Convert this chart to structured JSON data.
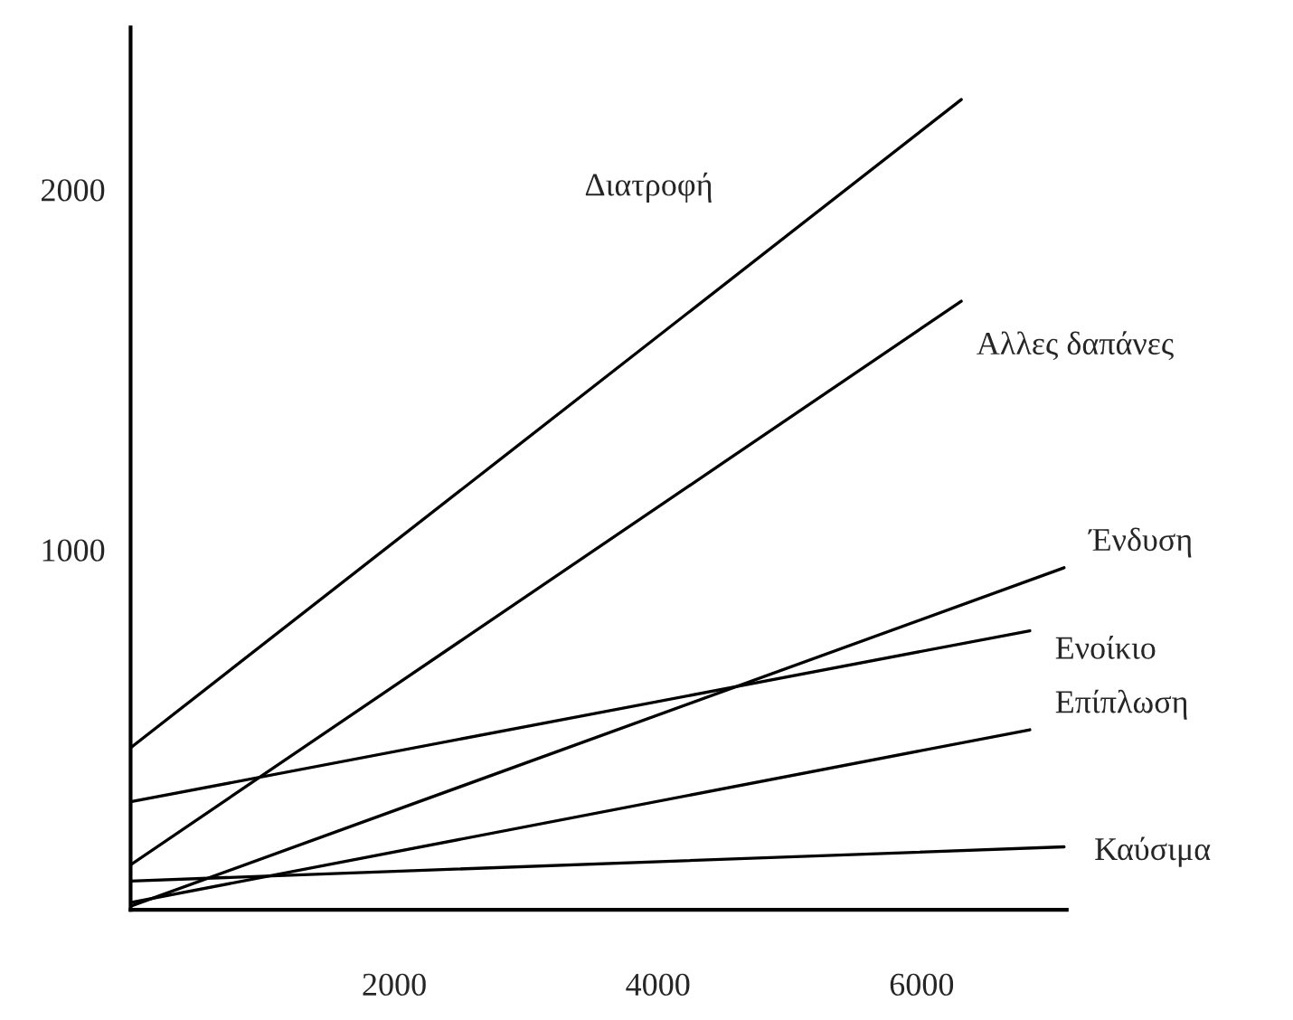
{
  "chart_data": {
    "type": "line",
    "x": [
      0,
      6300
    ],
    "series": [
      {
        "name": "Διατροφή",
        "color": "#000000",
        "values": [
          450,
          2250
        ]
      },
      {
        "name": "Αλλες δαπάνες",
        "color": "#000000",
        "values": [
          125,
          1690
        ]
      },
      {
        "name": "Ένδυση",
        "color": "#000000",
        "x": [
          0,
          7080
        ],
        "values": [
          10,
          950
        ]
      },
      {
        "name": "Ενοίκιο",
        "color": "#000000",
        "x": [
          0,
          6820
        ],
        "values": [
          300,
          775
        ]
      },
      {
        "name": "Επίπλωση",
        "color": "#000000",
        "x": [
          0,
          6820
        ],
        "values": [
          20,
          500
        ]
      },
      {
        "name": "Καύσιμα",
        "color": "#000000",
        "x": [
          0,
          7080
        ],
        "values": [
          80,
          175
        ]
      }
    ],
    "xlim": [
      0,
      7100
    ],
    "ylim": [
      0,
      2450
    ],
    "xticks": [
      2000,
      4000,
      6000
    ],
    "yticks": [
      1000,
      2000
    ],
    "grid": false,
    "legend": false,
    "marker": "none",
    "line_style": "solid"
  }
}
